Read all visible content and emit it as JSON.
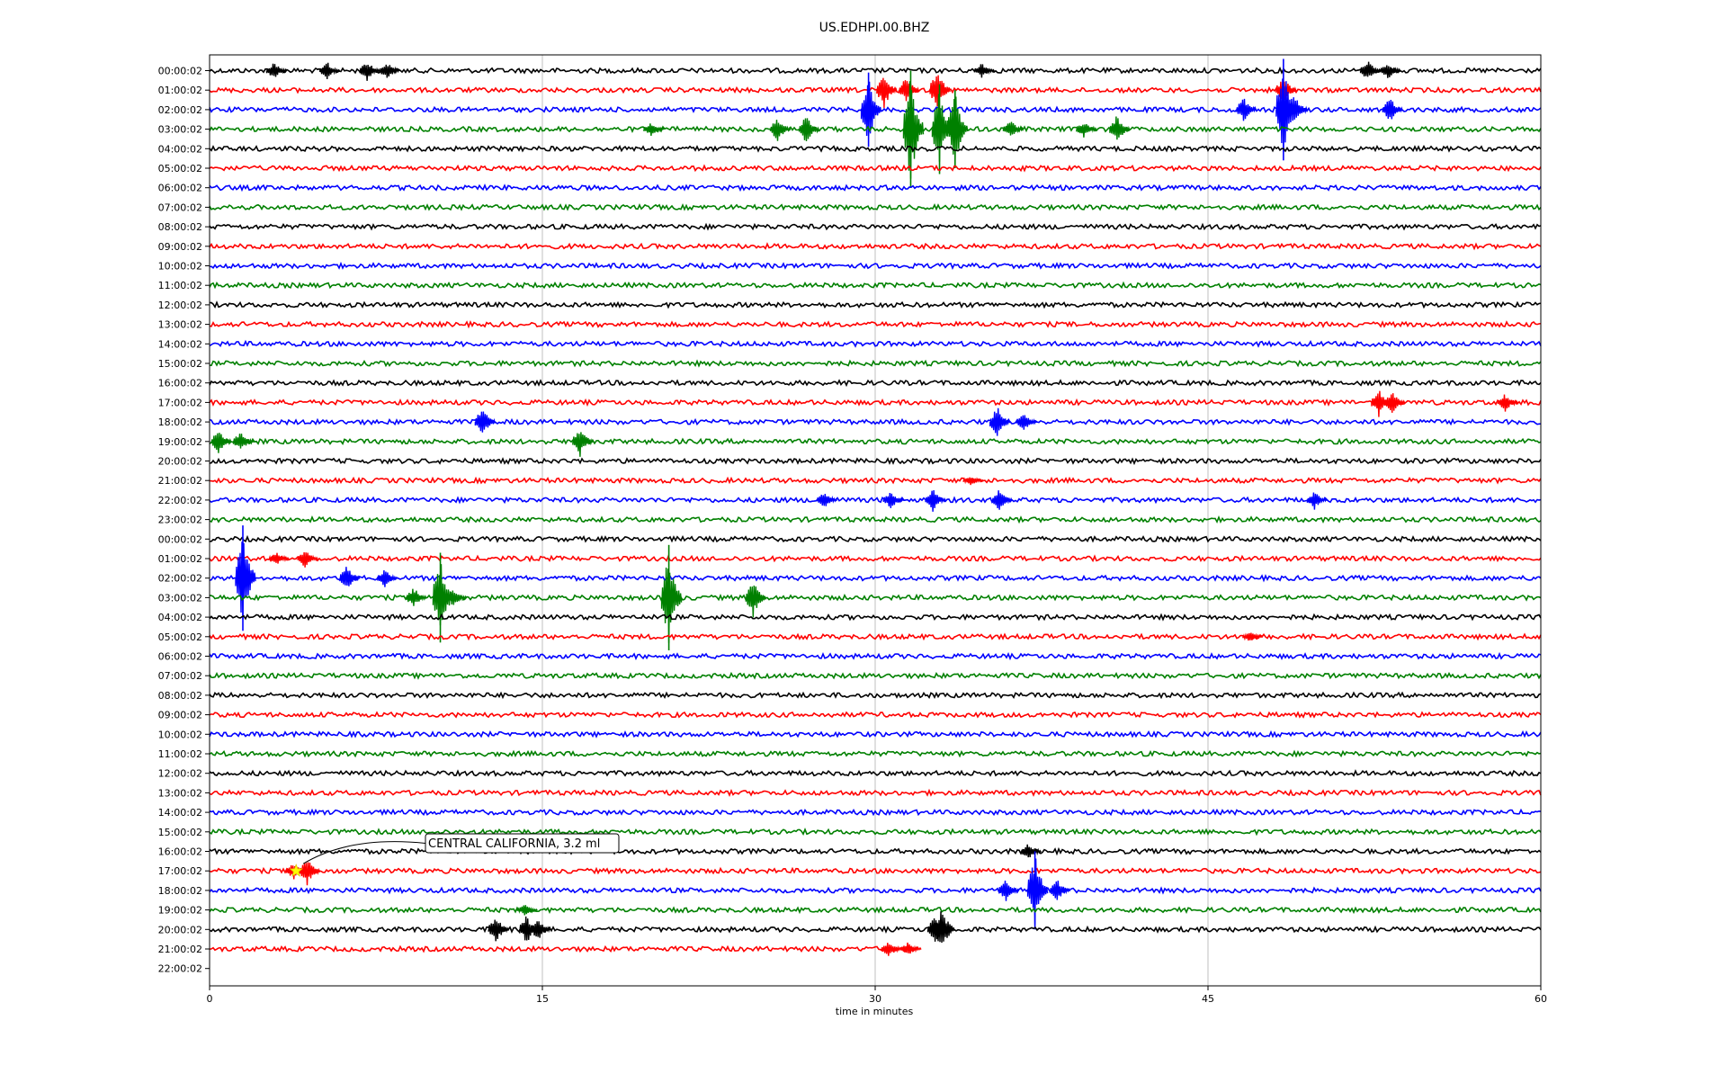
{
  "chart_data": {
    "type": "line",
    "title": "US.EDHPI.00.BHZ",
    "xlabel": "time in minutes",
    "ylabel": "",
    "xlim": [
      0,
      60
    ],
    "xticks": [
      0,
      15,
      30,
      45,
      60
    ],
    "grid": "vertical",
    "colors": [
      "#000000",
      "#ff0000",
      "#0000ff",
      "#008000"
    ],
    "rows": [
      "00:00:02",
      "01:00:02",
      "02:00:02",
      "03:00:02",
      "04:00:02",
      "05:00:02",
      "06:00:02",
      "07:00:02",
      "08:00:02",
      "09:00:02",
      "10:00:02",
      "11:00:02",
      "12:00:02",
      "13:00:02",
      "14:00:02",
      "15:00:02",
      "16:00:02",
      "17:00:02",
      "18:00:02",
      "19:00:02",
      "20:00:02",
      "21:00:02",
      "22:00:02",
      "23:00:02",
      "00:00:02",
      "01:00:02",
      "02:00:02",
      "03:00:02",
      "04:00:02",
      "05:00:02",
      "06:00:02",
      "07:00:02",
      "08:00:02",
      "09:00:02",
      "10:00:02",
      "11:00:02",
      "12:00:02",
      "13:00:02",
      "14:00:02",
      "15:00:02",
      "16:00:02",
      "17:00:02",
      "18:00:02",
      "19:00:02",
      "20:00:02",
      "21:00:02",
      "22:00:02"
    ],
    "row_end_minutes": [
      60,
      60,
      60,
      60,
      60,
      60,
      60,
      60,
      60,
      60,
      60,
      60,
      60,
      60,
      60,
      60,
      60,
      60,
      60,
      60,
      60,
      60,
      60,
      60,
      60,
      60,
      60,
      60,
      60,
      60,
      60,
      60,
      60,
      60,
      60,
      60,
      60,
      60,
      60,
      60,
      60,
      60,
      60,
      60,
      60,
      32,
      0
    ],
    "events": [
      {
        "row": 0,
        "t": 2.9,
        "amp": 0.5
      },
      {
        "row": 0,
        "t": 5.3,
        "amp": 0.5
      },
      {
        "row": 0,
        "t": 7.1,
        "amp": 0.6
      },
      {
        "row": 0,
        "t": 8.0,
        "amp": 0.5
      },
      {
        "row": 0,
        "t": 34.8,
        "amp": 0.4
      },
      {
        "row": 0,
        "t": 52.2,
        "amp": 0.6
      },
      {
        "row": 0,
        "t": 53.1,
        "amp": 0.5
      },
      {
        "row": 1,
        "t": 30.4,
        "amp": 1.0
      },
      {
        "row": 1,
        "t": 31.4,
        "amp": 0.8
      },
      {
        "row": 1,
        "t": 32.8,
        "amp": 1.2
      },
      {
        "row": 1,
        "t": 48.4,
        "amp": 0.8
      },
      {
        "row": 2,
        "t": 29.7,
        "amp": 1.9
      },
      {
        "row": 2,
        "t": 46.6,
        "amp": 0.7
      },
      {
        "row": 2,
        "t": 48.4,
        "amp": 2.6
      },
      {
        "row": 2,
        "t": 48.9,
        "amp": 0.8
      },
      {
        "row": 2,
        "t": 53.2,
        "amp": 0.7
      },
      {
        "row": 3,
        "t": 19.9,
        "amp": 0.4
      },
      {
        "row": 3,
        "t": 25.6,
        "amp": 0.7
      },
      {
        "row": 3,
        "t": 26.9,
        "amp": 0.8
      },
      {
        "row": 3,
        "t": 31.6,
        "amp": 3.0
      },
      {
        "row": 3,
        "t": 32.9,
        "amp": 2.3
      },
      {
        "row": 3,
        "t": 33.6,
        "amp": 2.0
      },
      {
        "row": 3,
        "t": 36.1,
        "amp": 0.5
      },
      {
        "row": 3,
        "t": 39.4,
        "amp": 0.5
      },
      {
        "row": 3,
        "t": 40.9,
        "amp": 0.8
      },
      {
        "row": 17,
        "t": 52.7,
        "amp": 0.8
      },
      {
        "row": 17,
        "t": 53.3,
        "amp": 0.6
      },
      {
        "row": 17,
        "t": 58.4,
        "amp": 0.5
      },
      {
        "row": 18,
        "t": 12.3,
        "amp": 0.9
      },
      {
        "row": 18,
        "t": 35.5,
        "amp": 0.9
      },
      {
        "row": 18,
        "t": 36.7,
        "amp": 0.5
      },
      {
        "row": 19,
        "t": 0.4,
        "amp": 0.7
      },
      {
        "row": 19,
        "t": 1.4,
        "amp": 0.6
      },
      {
        "row": 19,
        "t": 16.7,
        "amp": 0.8
      },
      {
        "row": 21,
        "t": 34.3,
        "amp": 0.3
      },
      {
        "row": 22,
        "t": 27.7,
        "amp": 0.5
      },
      {
        "row": 22,
        "t": 30.7,
        "amp": 0.5
      },
      {
        "row": 22,
        "t": 32.6,
        "amp": 0.6
      },
      {
        "row": 22,
        "t": 35.6,
        "amp": 0.6
      },
      {
        "row": 22,
        "t": 49.8,
        "amp": 0.5
      },
      {
        "row": 25,
        "t": 3.0,
        "amp": 0.4
      },
      {
        "row": 25,
        "t": 4.3,
        "amp": 0.5
      },
      {
        "row": 26,
        "t": 1.5,
        "amp": 2.7
      },
      {
        "row": 26,
        "t": 6.2,
        "amp": 0.7
      },
      {
        "row": 26,
        "t": 7.9,
        "amp": 0.5
      },
      {
        "row": 27,
        "t": 9.2,
        "amp": 0.6
      },
      {
        "row": 27,
        "t": 10.4,
        "amp": 2.3
      },
      {
        "row": 27,
        "t": 11.0,
        "amp": 0.5
      },
      {
        "row": 27,
        "t": 20.7,
        "amp": 2.7
      },
      {
        "row": 27,
        "t": 24.5,
        "amp": 1.1
      },
      {
        "row": 29,
        "t": 46.9,
        "amp": 0.3
      },
      {
        "row": 40,
        "t": 36.9,
        "amp": 0.5
      },
      {
        "row": 41,
        "t": 3.8,
        "amp": 0.5
      },
      {
        "row": 41,
        "t": 4.4,
        "amp": 0.8
      },
      {
        "row": 42,
        "t": 35.9,
        "amp": 0.6
      },
      {
        "row": 42,
        "t": 37.2,
        "amp": 2.0
      },
      {
        "row": 42,
        "t": 38.2,
        "amp": 0.6
      },
      {
        "row": 43,
        "t": 14.2,
        "amp": 0.3
      },
      {
        "row": 44,
        "t": 12.9,
        "amp": 0.8
      },
      {
        "row": 44,
        "t": 14.3,
        "amp": 0.8
      },
      {
        "row": 44,
        "t": 14.8,
        "amp": 0.7
      },
      {
        "row": 44,
        "t": 32.7,
        "amp": 0.8
      },
      {
        "row": 44,
        "t": 33.0,
        "amp": 1.3
      },
      {
        "row": 45,
        "t": 30.6,
        "amp": 0.5
      },
      {
        "row": 45,
        "t": 31.5,
        "amp": 0.4
      }
    ],
    "annotation": {
      "text": "CENTRAL CALIFORNIA, 3.2 ml",
      "row": 41,
      "t": 3.9
    }
  }
}
